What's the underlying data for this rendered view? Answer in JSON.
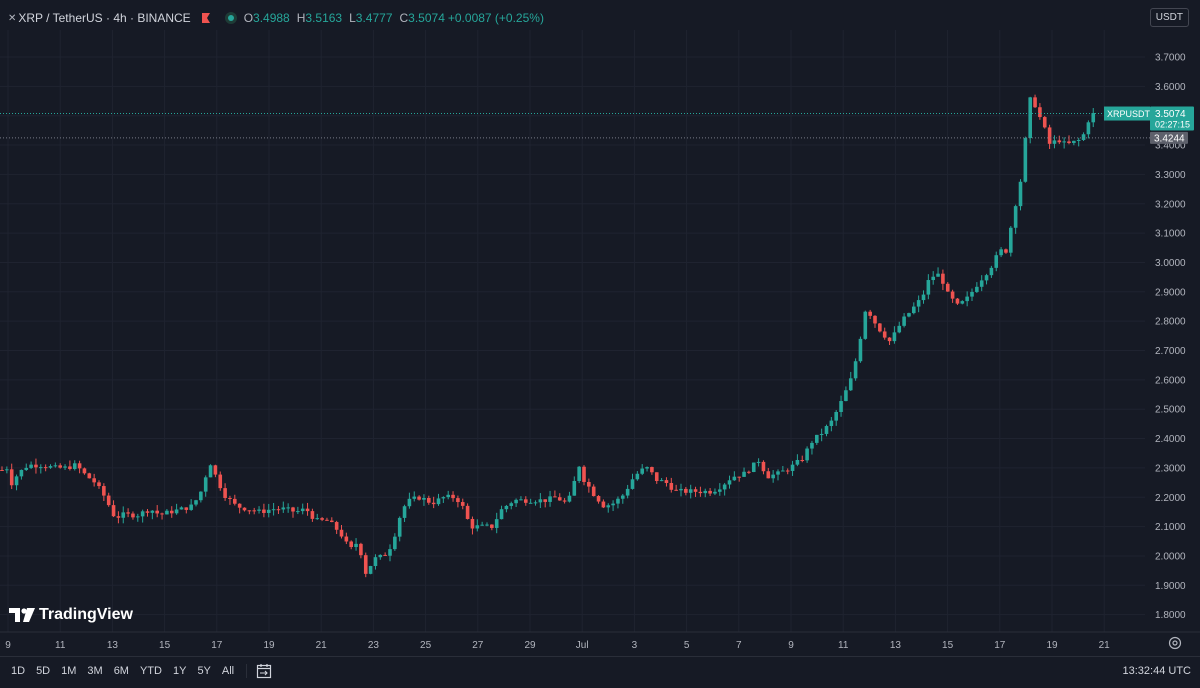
{
  "legend": {
    "symbol": "XRP / TetherUS · 4h · BINANCE",
    "o_label": "O",
    "o": "3.4988",
    "h_label": "H",
    "h": "3.5163",
    "l_label": "L",
    "l": "3.4777",
    "c_label": "C",
    "c": "3.5074",
    "change": "+0.0087 (+0.25%)"
  },
  "currency": "USDT",
  "branding": "TradingView",
  "ranges": [
    "1D",
    "5D",
    "1M",
    "3M",
    "6M",
    "YTD",
    "1Y",
    "5Y",
    "All"
  ],
  "clock": "13:32:44 UTC",
  "price_labels": {
    "symbol_tag": "XRPUSDT",
    "last_price": "3.5074",
    "countdown": "02:27:15",
    "marker_price": "3.4244"
  },
  "colors": {
    "up": "#26a69a",
    "down": "#ef5350",
    "background": "#161a25",
    "grid": "#1f2330"
  },
  "chart_data": {
    "type": "candlestick",
    "title": "",
    "y_ticks": [
      "3.7000",
      "3.6000",
      "3.5000",
      "3.4000",
      "3.3000",
      "3.2000",
      "3.1000",
      "3.0000",
      "2.9000",
      "2.8000",
      "2.7000",
      "2.6000",
      "2.5000",
      "2.4000",
      "2.3000",
      "2.2000",
      "2.1000",
      "2.0000",
      "1.9000",
      "1.8000"
    ],
    "x_ticks": [
      "9",
      "11",
      "13",
      "15",
      "17",
      "19",
      "21",
      "23",
      "25",
      "27",
      "29",
      "Jul",
      "3",
      "5",
      "7",
      "9",
      "11",
      "13",
      "15",
      "17",
      "19",
      "21"
    ],
    "ylim": [
      1.75,
      3.75
    ],
    "grid": true,
    "close_path": [
      [
        0,
        2.29
      ],
      [
        7,
        2.3
      ],
      [
        10,
        2.24
      ],
      [
        18,
        2.28
      ],
      [
        28,
        2.31
      ],
      [
        40,
        2.31
      ],
      [
        55,
        2.3
      ],
      [
        66,
        2.3
      ],
      [
        76,
        2.31
      ],
      [
        84,
        2.28
      ],
      [
        95,
        2.25
      ],
      [
        105,
        2.2
      ],
      [
        115,
        2.13
      ],
      [
        123,
        2.14
      ],
      [
        138,
        2.14
      ],
      [
        150,
        2.16
      ],
      [
        160,
        2.14
      ],
      [
        170,
        2.15
      ],
      [
        182,
        2.16
      ],
      [
        192,
        2.17
      ],
      [
        200,
        2.21
      ],
      [
        210,
        2.32
      ],
      [
        216,
        2.27
      ],
      [
        224,
        2.21
      ],
      [
        236,
        2.17
      ],
      [
        248,
        2.16
      ],
      [
        260,
        2.15
      ],
      [
        272,
        2.16
      ],
      [
        284,
        2.16
      ],
      [
        296,
        2.15
      ],
      [
        306,
        2.16
      ],
      [
        316,
        2.12
      ],
      [
        328,
        2.12
      ],
      [
        340,
        2.08
      ],
      [
        350,
        2.02
      ],
      [
        358,
        2.05
      ],
      [
        366,
        1.94
      ],
      [
        374,
        1.99
      ],
      [
        384,
        2.0
      ],
      [
        392,
        2.04
      ],
      [
        402,
        2.16
      ],
      [
        410,
        2.19
      ],
      [
        420,
        2.2
      ],
      [
        432,
        2.18
      ],
      [
        444,
        2.2
      ],
      [
        456,
        2.2
      ],
      [
        464,
        2.16
      ],
      [
        470,
        2.1
      ],
      [
        480,
        2.1
      ],
      [
        492,
        2.1
      ],
      [
        502,
        2.16
      ],
      [
        514,
        2.19
      ],
      [
        524,
        2.19
      ],
      [
        536,
        2.19
      ],
      [
        546,
        2.19
      ],
      [
        556,
        2.2
      ],
      [
        566,
        2.18
      ],
      [
        572,
        2.21
      ],
      [
        578,
        2.32
      ],
      [
        584,
        2.26
      ],
      [
        594,
        2.21
      ],
      [
        604,
        2.17
      ],
      [
        614,
        2.18
      ],
      [
        624,
        2.21
      ],
      [
        632,
        2.26
      ],
      [
        640,
        2.29
      ],
      [
        648,
        2.3
      ],
      [
        656,
        2.26
      ],
      [
        666,
        2.25
      ],
      [
        676,
        2.22
      ],
      [
        688,
        2.22
      ],
      [
        700,
        2.22
      ],
      [
        712,
        2.22
      ],
      [
        722,
        2.24
      ],
      [
        732,
        2.27
      ],
      [
        744,
        2.28
      ],
      [
        754,
        2.31
      ],
      [
        760,
        2.33
      ],
      [
        766,
        2.27
      ],
      [
        778,
        2.28
      ],
      [
        790,
        2.3
      ],
      [
        802,
        2.33
      ],
      [
        812,
        2.39
      ],
      [
        822,
        2.42
      ],
      [
        832,
        2.46
      ],
      [
        842,
        2.53
      ],
      [
        852,
        2.61
      ],
      [
        858,
        2.7
      ],
      [
        866,
        2.85
      ],
      [
        874,
        2.8
      ],
      [
        880,
        2.77
      ],
      [
        890,
        2.73
      ],
      [
        902,
        2.8
      ],
      [
        912,
        2.84
      ],
      [
        922,
        2.88
      ],
      [
        930,
        2.95
      ],
      [
        940,
        2.96
      ],
      [
        948,
        2.89
      ],
      [
        958,
        2.85
      ],
      [
        968,
        2.88
      ],
      [
        978,
        2.93
      ],
      [
        990,
        2.98
      ],
      [
        1000,
        3.04
      ],
      [
        1006,
        3.04
      ],
      [
        1012,
        3.14
      ],
      [
        1018,
        3.24
      ],
      [
        1022,
        3.3
      ],
      [
        1028,
        3.51
      ],
      [
        1032,
        3.59
      ],
      [
        1036,
        3.52
      ],
      [
        1042,
        3.48
      ],
      [
        1050,
        3.4
      ],
      [
        1058,
        3.42
      ],
      [
        1066,
        3.4
      ],
      [
        1074,
        3.41
      ],
      [
        1082,
        3.42
      ],
      [
        1090,
        3.5
      ],
      [
        1096,
        3.51
      ]
    ]
  }
}
